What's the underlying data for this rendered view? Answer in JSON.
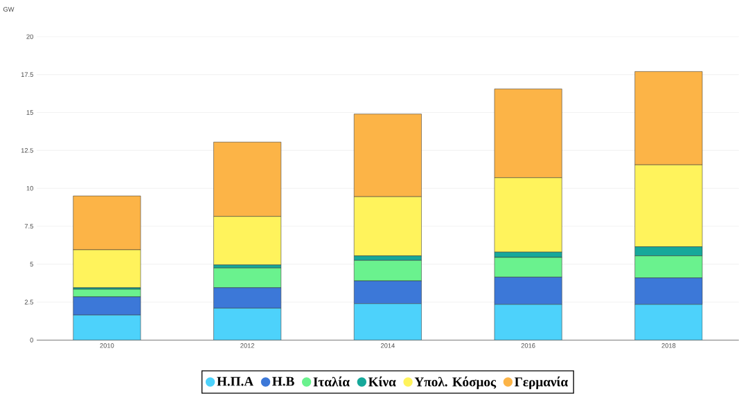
{
  "chart_data": {
    "type": "bar",
    "stacked": true,
    "ylabel": "GW",
    "categories": [
      "2010",
      "2012",
      "2014",
      "2016",
      "2018"
    ],
    "series": [
      {
        "name": "Η.Π.Α",
        "color": "#4dd2fb",
        "values": [
          1.65,
          2.1,
          2.4,
          2.35,
          2.35
        ]
      },
      {
        "name": "Η.Β",
        "color": "#3c78d8",
        "values": [
          1.2,
          1.35,
          1.5,
          1.8,
          1.75
        ]
      },
      {
        "name": "Ιταλία",
        "color": "#6af28e",
        "values": [
          0.5,
          1.3,
          1.35,
          1.3,
          1.45
        ]
      },
      {
        "name": "Κίνα",
        "color": "#16a89a",
        "values": [
          0.1,
          0.2,
          0.3,
          0.35,
          0.6
        ]
      },
      {
        "name": "Υπολ. Κόσμος",
        "color": "#fff35c",
        "values": [
          2.5,
          3.2,
          3.9,
          4.9,
          5.4
        ]
      },
      {
        "name": "Γερμανία",
        "color": "#fcb447",
        "values": [
          3.55,
          4.9,
          5.45,
          5.85,
          6.15
        ]
      }
    ],
    "ylim": [
      0,
      20
    ],
    "yticks": [
      0,
      2.5,
      5,
      7.5,
      10,
      12.5,
      15,
      17.5,
      20
    ],
    "grid": "y",
    "legend": "bottom"
  }
}
